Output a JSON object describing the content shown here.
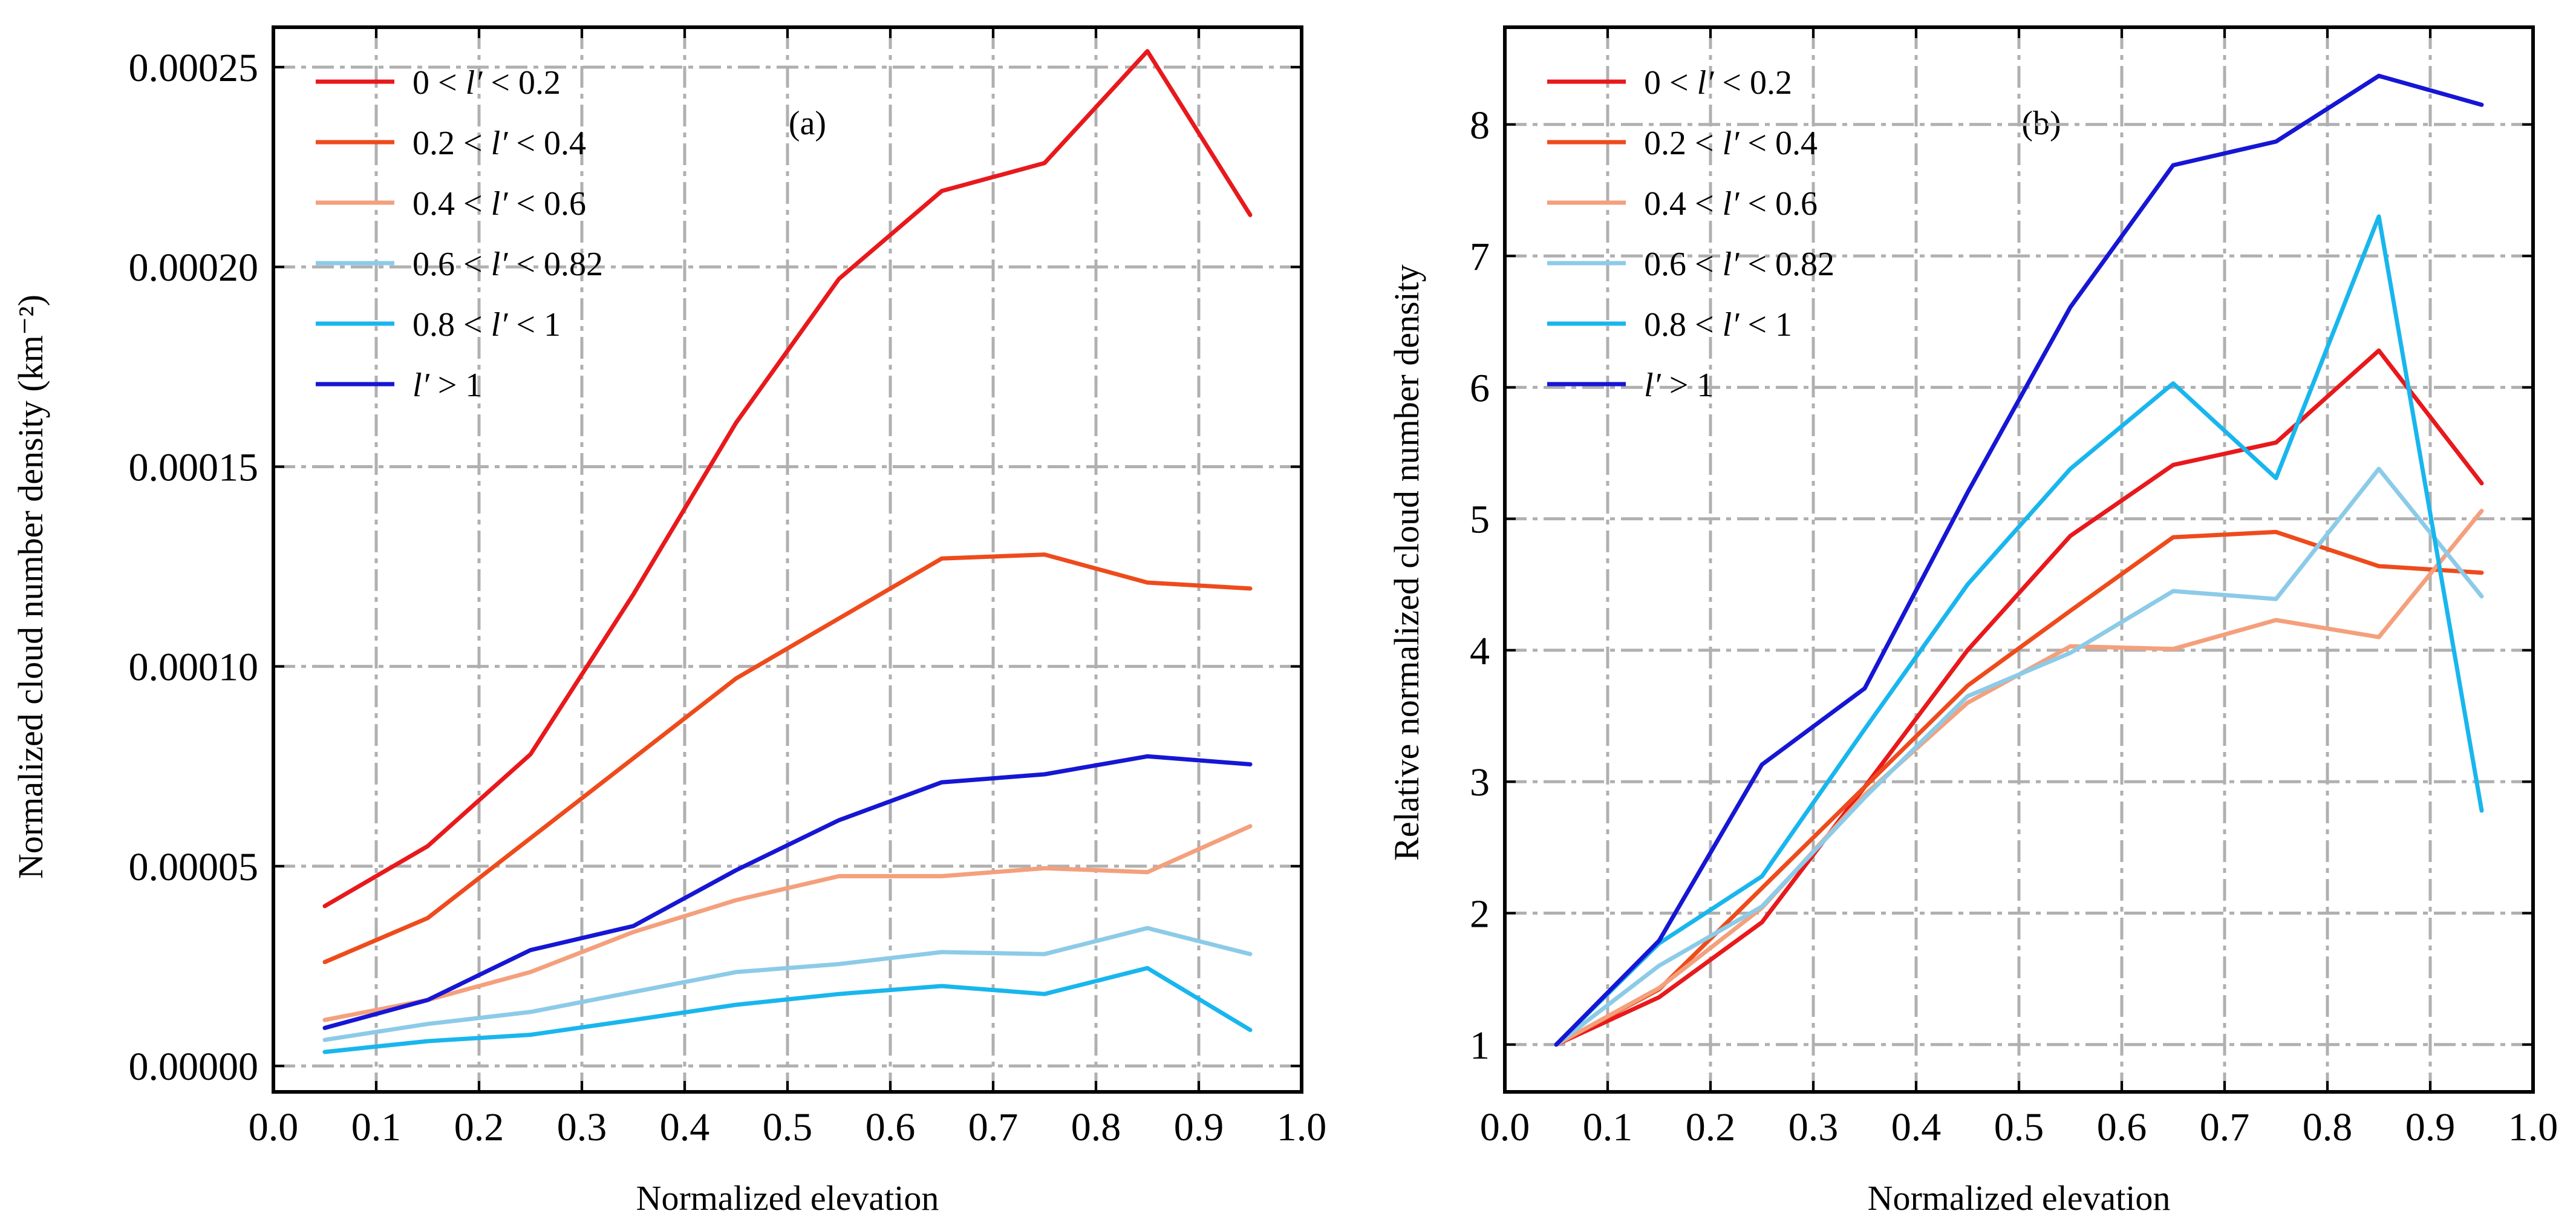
{
  "chart_data": [
    {
      "type": "line",
      "panel_label": "(a)",
      "xlabel": "Normalized elevation",
      "ylabel": "Normalized cloud number density (km⁻²)",
      "xlim": [
        0.0,
        1.0
      ],
      "ylim": [
        -6.5e-06,
        0.00026
      ],
      "xticks": [
        "0.0",
        "0.1",
        "0.2",
        "0.3",
        "0.4",
        "0.5",
        "0.6",
        "0.7",
        "0.8",
        "0.9",
        "1.0"
      ],
      "xtick_values": [
        0,
        0.1,
        0.2,
        0.3,
        0.4,
        0.5,
        0.6,
        0.7,
        0.8,
        0.9,
        1.0
      ],
      "yticks": [
        "0.00000",
        "0.00005",
        "0.00010",
        "0.00015",
        "0.00020",
        "0.00025"
      ],
      "ytick_values": [
        0,
        5e-05,
        0.0001,
        0.00015,
        0.0002,
        0.00025
      ],
      "grid": true,
      "legend_position": "top-left",
      "x": [
        0.05,
        0.15,
        0.25,
        0.35,
        0.45,
        0.55,
        0.65,
        0.75,
        0.85,
        0.95
      ],
      "series": [
        {
          "name": "0 < l′ < 0.2",
          "color": "#e8191c",
          "values": [
            4e-05,
            5.5e-05,
            7.8e-05,
            0.000118,
            0.000161,
            0.000197,
            0.000219,
            0.000226,
            0.000254,
            0.000213
          ]
        },
        {
          "name": "0.2 < l′ < 0.4",
          "color": "#ee4b1c",
          "values": [
            2.6e-05,
            3.7e-05,
            5.7e-05,
            7.7e-05,
            9.7e-05,
            0.000112,
            0.000127,
            0.000128,
            0.000121,
            0.0001195
          ]
        },
        {
          "name": "0.4 < l′ < 0.6",
          "color": "#f4a07c",
          "values": [
            1.15e-05,
            1.65e-05,
            2.35e-05,
            3.35e-05,
            4.15e-05,
            4.75e-05,
            4.75e-05,
            4.95e-05,
            4.85e-05,
            6e-05
          ]
        },
        {
          "name": "0.6 < l′ < 0.82",
          "color": "#8ccbe8",
          "values": [
            6.5e-06,
            1.05e-05,
            1.35e-05,
            1.85e-05,
            2.35e-05,
            2.55e-05,
            2.85e-05,
            2.8e-05,
            3.45e-05,
            2.8e-05
          ]
        },
        {
          "name": "0.8 < l′ < 1",
          "color": "#19b6ee",
          "values": [
            3.5e-06,
            6.2e-06,
            7.8e-06,
            1.15e-05,
            1.53e-05,
            1.8e-05,
            2e-05,
            1.8e-05,
            2.45e-05,
            9e-06
          ]
        },
        {
          "name": "l′ > 1",
          "color": "#1616d4",
          "values": [
            9.5e-06,
            1.65e-05,
            2.9e-05,
            3.5e-05,
            4.9e-05,
            6.15e-05,
            7.1e-05,
            7.3e-05,
            7.75e-05,
            7.55e-05
          ]
        }
      ]
    },
    {
      "type": "line",
      "panel_label": "(b)",
      "xlabel": "Normalized elevation",
      "ylabel": "Relative normalized cloud number density",
      "xlim": [
        0.0,
        1.0
      ],
      "ylim": [
        0.64,
        8.74
      ],
      "xticks": [
        "0.0",
        "0.1",
        "0.2",
        "0.3",
        "0.4",
        "0.5",
        "0.6",
        "0.7",
        "0.8",
        "0.9",
        "1.0"
      ],
      "xtick_values": [
        0,
        0.1,
        0.2,
        0.3,
        0.4,
        0.5,
        0.6,
        0.7,
        0.8,
        0.9,
        1.0
      ],
      "yticks": [
        "1",
        "2",
        "3",
        "4",
        "5",
        "6",
        "7",
        "8"
      ],
      "ytick_values": [
        1,
        2,
        3,
        4,
        5,
        6,
        7,
        8
      ],
      "grid": true,
      "legend_position": "top-left",
      "x": [
        0.05,
        0.15,
        0.25,
        0.35,
        0.45,
        0.55,
        0.65,
        0.75,
        0.85,
        0.95
      ],
      "series": [
        {
          "name": "0 < l′ < 0.2",
          "color": "#e8191c",
          "values": [
            1,
            1.36,
            1.93,
            2.96,
            4.0,
            4.87,
            5.41,
            5.58,
            6.28,
            5.27
          ]
        },
        {
          "name": "0.2 < l′ < 0.4",
          "color": "#ee4b1c",
          "values": [
            1,
            1.42,
            2.19,
            2.96,
            3.73,
            4.3,
            4.86,
            4.9,
            4.64,
            4.59
          ]
        },
        {
          "name": "0.4 < l′ < 0.6",
          "color": "#f4a07c",
          "values": [
            1,
            1.43,
            2.04,
            2.9,
            3.6,
            4.03,
            4.01,
            4.23,
            4.1,
            5.06
          ]
        },
        {
          "name": "0.6 < l′ < 0.82",
          "color": "#8ccbe8",
          "values": [
            1,
            1.6,
            2.05,
            2.88,
            3.65,
            3.98,
            4.45,
            4.39,
            5.38,
            4.41
          ]
        },
        {
          "name": "0.8 < l′ < 1",
          "color": "#19b6ee",
          "values": [
            1,
            1.77,
            2.28,
            3.4,
            4.5,
            5.38,
            6.03,
            5.31,
            7.3,
            2.78
          ]
        },
        {
          "name": "l′ > 1",
          "color": "#1616d4",
          "values": [
            1,
            1.79,
            3.13,
            3.71,
            5.2,
            6.61,
            7.69,
            7.87,
            8.37,
            8.15
          ]
        }
      ]
    }
  ]
}
